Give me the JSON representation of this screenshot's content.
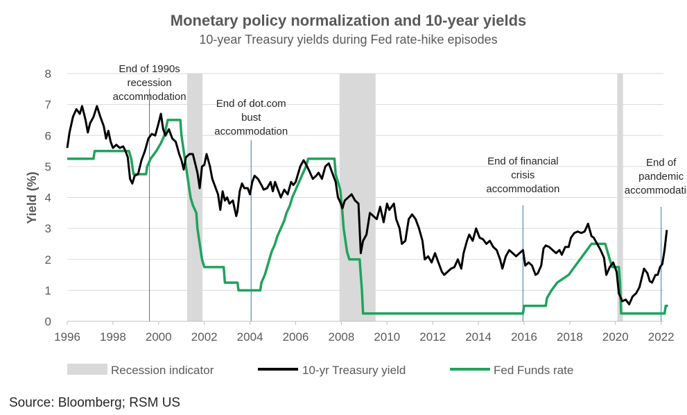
{
  "chart_data": {
    "type": "line",
    "title": "Monetary policy normalization and 10-year yields",
    "subtitle": "10-year Treasury yields during Fed rate-hike episodes",
    "ylabel": "Yield (%)",
    "xlabel": "",
    "xlim": [
      1996,
      2022.4
    ],
    "ylim": [
      0,
      8
    ],
    "grid": true,
    "legend_position": "bottom",
    "x_ticks": [
      "1996",
      "1998",
      "2000",
      "2002",
      "2004",
      "2006",
      "2008",
      "2010",
      "2012",
      "2014",
      "2016",
      "2018",
      "2020",
      "2022"
    ],
    "y_ticks": [
      "0",
      "1",
      "2",
      "3",
      "4",
      "5",
      "6",
      "7",
      "8"
    ],
    "recessions": [
      {
        "start": 2001.25,
        "end": 2001.92
      },
      {
        "start": 2007.92,
        "end": 2009.5
      },
      {
        "start": 2020.08,
        "end": 2020.33
      }
    ],
    "annotations": [
      {
        "x": 1999.6,
        "lines": [
          "End of 1990s",
          "recession",
          "accommodation"
        ]
      },
      {
        "x": 2004.05,
        "lines": [
          "End of dot.com",
          "bust",
          "accommodation"
        ]
      },
      {
        "x": 2015.95,
        "lines": [
          "End of financial",
          "crisis",
          "accommodation"
        ]
      },
      {
        "x": 2022.0,
        "lines": [
          "End of",
          "pandemic",
          "accommodation"
        ]
      }
    ],
    "series": [
      {
        "name": "10-yr Treasury yield",
        "color": "#000000",
        "points": [
          [
            1996.0,
            5.6
          ],
          [
            1996.1,
            6.1
          ],
          [
            1996.25,
            6.6
          ],
          [
            1996.4,
            6.85
          ],
          [
            1996.55,
            6.7
          ],
          [
            1996.65,
            6.95
          ],
          [
            1996.8,
            6.5
          ],
          [
            1996.9,
            6.1
          ],
          [
            1997.0,
            6.4
          ],
          [
            1997.15,
            6.6
          ],
          [
            1997.3,
            6.95
          ],
          [
            1997.45,
            6.6
          ],
          [
            1997.6,
            6.3
          ],
          [
            1997.7,
            5.9
          ],
          [
            1997.8,
            6.15
          ],
          [
            1997.9,
            5.8
          ],
          [
            1998.0,
            5.6
          ],
          [
            1998.15,
            5.7
          ],
          [
            1998.3,
            5.6
          ],
          [
            1998.45,
            5.65
          ],
          [
            1998.55,
            5.5
          ],
          [
            1998.65,
            5.3
          ],
          [
            1998.75,
            4.6
          ],
          [
            1998.85,
            4.45
          ],
          [
            1998.95,
            4.7
          ],
          [
            1999.1,
            4.75
          ],
          [
            1999.25,
            5.2
          ],
          [
            1999.4,
            5.5
          ],
          [
            1999.55,
            5.9
          ],
          [
            1999.7,
            6.05
          ],
          [
            1999.85,
            6.0
          ],
          [
            2000.0,
            6.4
          ],
          [
            2000.1,
            6.7
          ],
          [
            2000.2,
            6.2
          ],
          [
            2000.3,
            6.0
          ],
          [
            2000.45,
            6.2
          ],
          [
            2000.6,
            5.9
          ],
          [
            2000.75,
            5.8
          ],
          [
            2000.9,
            5.4
          ],
          [
            2001.0,
            5.2
          ],
          [
            2001.1,
            4.9
          ],
          [
            2001.2,
            5.3
          ],
          [
            2001.35,
            5.4
          ],
          [
            2001.5,
            5.4
          ],
          [
            2001.6,
            5.1
          ],
          [
            2001.7,
            4.8
          ],
          [
            2001.8,
            4.3
          ],
          [
            2001.9,
            5.0
          ],
          [
            2002.0,
            5.05
          ],
          [
            2002.1,
            5.4
          ],
          [
            2002.25,
            5.0
          ],
          [
            2002.35,
            4.6
          ],
          [
            2002.5,
            4.3
          ],
          [
            2002.6,
            4.1
          ],
          [
            2002.7,
            3.6
          ],
          [
            2002.8,
            4.2
          ],
          [
            2002.9,
            3.9
          ],
          [
            2003.0,
            4.0
          ],
          [
            2003.1,
            3.8
          ],
          [
            2003.25,
            3.9
          ],
          [
            2003.4,
            3.4
          ],
          [
            2003.45,
            3.55
          ],
          [
            2003.55,
            4.2
          ],
          [
            2003.65,
            4.45
          ],
          [
            2003.75,
            4.3
          ],
          [
            2003.9,
            4.3
          ],
          [
            2004.0,
            4.1
          ],
          [
            2004.1,
            4.5
          ],
          [
            2004.2,
            4.7
          ],
          [
            2004.35,
            4.6
          ],
          [
            2004.5,
            4.4
          ],
          [
            2004.6,
            4.25
          ],
          [
            2004.75,
            4.3
          ],
          [
            2004.9,
            4.5
          ],
          [
            2005.0,
            4.2
          ],
          [
            2005.1,
            4.5
          ],
          [
            2005.25,
            4.2
          ],
          [
            2005.35,
            4.0
          ],
          [
            2005.5,
            4.25
          ],
          [
            2005.65,
            4.1
          ],
          [
            2005.8,
            4.5
          ],
          [
            2005.9,
            4.4
          ],
          [
            2006.0,
            4.5
          ],
          [
            2006.2,
            5.0
          ],
          [
            2006.35,
            5.2
          ],
          [
            2006.5,
            5.0
          ],
          [
            2006.6,
            4.85
          ],
          [
            2006.75,
            4.6
          ],
          [
            2006.9,
            4.7
          ],
          [
            2007.0,
            4.8
          ],
          [
            2007.15,
            4.6
          ],
          [
            2007.3,
            5.0
          ],
          [
            2007.45,
            5.1
          ],
          [
            2007.6,
            4.8
          ],
          [
            2007.75,
            4.5
          ],
          [
            2007.85,
            4.0
          ],
          [
            2007.95,
            3.85
          ],
          [
            2008.05,
            3.65
          ],
          [
            2008.15,
            3.9
          ],
          [
            2008.3,
            4.0
          ],
          [
            2008.45,
            4.1
          ],
          [
            2008.6,
            3.9
          ],
          [
            2008.75,
            3.8
          ],
          [
            2008.85,
            2.2
          ],
          [
            2008.95,
            2.6
          ],
          [
            2009.1,
            2.8
          ],
          [
            2009.25,
            3.5
          ],
          [
            2009.4,
            3.4
          ],
          [
            2009.55,
            3.3
          ],
          [
            2009.7,
            3.7
          ],
          [
            2009.85,
            3.2
          ],
          [
            2010.0,
            3.8
          ],
          [
            2010.1,
            3.6
          ],
          [
            2010.3,
            3.8
          ],
          [
            2010.4,
            3.3
          ],
          [
            2010.55,
            3.0
          ],
          [
            2010.65,
            2.5
          ],
          [
            2010.8,
            2.6
          ],
          [
            2010.95,
            3.3
          ],
          [
            2011.1,
            3.45
          ],
          [
            2011.25,
            3.3
          ],
          [
            2011.4,
            3.0
          ],
          [
            2011.55,
            2.6
          ],
          [
            2011.65,
            2.0
          ],
          [
            2011.8,
            2.1
          ],
          [
            2011.95,
            1.9
          ],
          [
            2012.1,
            2.2
          ],
          [
            2012.25,
            1.9
          ],
          [
            2012.4,
            1.6
          ],
          [
            2012.5,
            1.5
          ],
          [
            2012.65,
            1.6
          ],
          [
            2012.8,
            1.7
          ],
          [
            2012.95,
            1.75
          ],
          [
            2013.1,
            2.0
          ],
          [
            2013.25,
            1.7
          ],
          [
            2013.35,
            2.2
          ],
          [
            2013.5,
            2.6
          ],
          [
            2013.6,
            2.8
          ],
          [
            2013.75,
            2.6
          ],
          [
            2013.9,
            3.0
          ],
          [
            2014.05,
            2.7
          ],
          [
            2014.2,
            2.65
          ],
          [
            2014.35,
            2.5
          ],
          [
            2014.5,
            2.6
          ],
          [
            2014.65,
            2.4
          ],
          [
            2014.8,
            2.3
          ],
          [
            2014.95,
            2.0
          ],
          [
            2015.05,
            1.7
          ],
          [
            2015.2,
            2.1
          ],
          [
            2015.35,
            2.3
          ],
          [
            2015.5,
            2.2
          ],
          [
            2015.65,
            2.1
          ],
          [
            2015.8,
            2.2
          ],
          [
            2015.95,
            2.3
          ],
          [
            2016.05,
            1.8
          ],
          [
            2016.2,
            1.9
          ],
          [
            2016.35,
            1.8
          ],
          [
            2016.5,
            1.5
          ],
          [
            2016.6,
            1.55
          ],
          [
            2016.75,
            1.8
          ],
          [
            2016.85,
            2.35
          ],
          [
            2016.95,
            2.45
          ],
          [
            2017.1,
            2.4
          ],
          [
            2017.25,
            2.3
          ],
          [
            2017.4,
            2.2
          ],
          [
            2017.55,
            2.3
          ],
          [
            2017.65,
            2.15
          ],
          [
            2017.8,
            2.4
          ],
          [
            2017.95,
            2.4
          ],
          [
            2018.05,
            2.7
          ],
          [
            2018.2,
            2.85
          ],
          [
            2018.35,
            2.9
          ],
          [
            2018.5,
            2.85
          ],
          [
            2018.65,
            2.9
          ],
          [
            2018.8,
            3.15
          ],
          [
            2018.95,
            2.75
          ],
          [
            2019.05,
            2.7
          ],
          [
            2019.2,
            2.5
          ],
          [
            2019.35,
            2.3
          ],
          [
            2019.5,
            2.05
          ],
          [
            2019.6,
            1.5
          ],
          [
            2019.75,
            1.75
          ],
          [
            2019.9,
            1.9
          ],
          [
            2020.05,
            1.6
          ],
          [
            2020.15,
            0.9
          ],
          [
            2020.3,
            0.65
          ],
          [
            2020.45,
            0.7
          ],
          [
            2020.6,
            0.55
          ],
          [
            2020.75,
            0.8
          ],
          [
            2020.9,
            0.9
          ],
          [
            2021.05,
            1.1
          ],
          [
            2021.15,
            1.4
          ],
          [
            2021.25,
            1.7
          ],
          [
            2021.4,
            1.55
          ],
          [
            2021.5,
            1.3
          ],
          [
            2021.6,
            1.25
          ],
          [
            2021.75,
            1.5
          ],
          [
            2021.85,
            1.5
          ],
          [
            2021.95,
            1.75
          ],
          [
            2022.05,
            1.85
          ],
          [
            2022.15,
            2.3
          ],
          [
            2022.25,
            2.95
          ]
        ]
      },
      {
        "name": "Fed Funds rate",
        "color": "#1fa35c",
        "points": [
          [
            1996.0,
            5.25
          ],
          [
            1997.15,
            5.25
          ],
          [
            1997.2,
            5.5
          ],
          [
            1998.7,
            5.5
          ],
          [
            1998.8,
            5.25
          ],
          [
            1998.85,
            5.0
          ],
          [
            1998.9,
            4.75
          ],
          [
            1999.45,
            4.75
          ],
          [
            1999.5,
            5.0
          ],
          [
            1999.65,
            5.25
          ],
          [
            1999.9,
            5.5
          ],
          [
            2000.1,
            5.75
          ],
          [
            2000.25,
            6.0
          ],
          [
            2000.4,
            6.5
          ],
          [
            2000.95,
            6.5
          ],
          [
            2001.0,
            6.0
          ],
          [
            2001.1,
            5.5
          ],
          [
            2001.2,
            5.0
          ],
          [
            2001.3,
            4.5
          ],
          [
            2001.4,
            4.0
          ],
          [
            2001.5,
            3.75
          ],
          [
            2001.65,
            3.5
          ],
          [
            2001.7,
            3.0
          ],
          [
            2001.8,
            2.5
          ],
          [
            2001.9,
            2.0
          ],
          [
            2002.0,
            1.75
          ],
          [
            2002.85,
            1.75
          ],
          [
            2002.9,
            1.25
          ],
          [
            2003.45,
            1.25
          ],
          [
            2003.5,
            1.0
          ],
          [
            2004.45,
            1.0
          ],
          [
            2004.5,
            1.25
          ],
          [
            2004.65,
            1.5
          ],
          [
            2004.75,
            1.75
          ],
          [
            2004.85,
            2.0
          ],
          [
            2004.95,
            2.25
          ],
          [
            2005.1,
            2.5
          ],
          [
            2005.2,
            2.75
          ],
          [
            2005.35,
            3.0
          ],
          [
            2005.5,
            3.25
          ],
          [
            2005.6,
            3.5
          ],
          [
            2005.75,
            3.75
          ],
          [
            2005.85,
            4.0
          ],
          [
            2006.0,
            4.25
          ],
          [
            2006.15,
            4.5
          ],
          [
            2006.3,
            4.75
          ],
          [
            2006.45,
            5.0
          ],
          [
            2006.55,
            5.25
          ],
          [
            2007.7,
            5.25
          ],
          [
            2007.75,
            4.75
          ],
          [
            2007.85,
            4.5
          ],
          [
            2007.95,
            4.25
          ],
          [
            2008.05,
            3.5
          ],
          [
            2008.1,
            3.0
          ],
          [
            2008.25,
            2.25
          ],
          [
            2008.35,
            2.0
          ],
          [
            2008.8,
            2.0
          ],
          [
            2008.85,
            1.5
          ],
          [
            2008.9,
            1.0
          ],
          [
            2008.95,
            0.25
          ],
          [
            2015.95,
            0.25
          ],
          [
            2016.0,
            0.5
          ],
          [
            2016.95,
            0.5
          ],
          [
            2017.0,
            0.75
          ],
          [
            2017.2,
            1.0
          ],
          [
            2017.45,
            1.25
          ],
          [
            2017.95,
            1.5
          ],
          [
            2018.2,
            1.75
          ],
          [
            2018.45,
            2.0
          ],
          [
            2018.7,
            2.25
          ],
          [
            2018.95,
            2.5
          ],
          [
            2019.55,
            2.5
          ],
          [
            2019.65,
            2.25
          ],
          [
            2019.75,
            2.0
          ],
          [
            2019.85,
            1.75
          ],
          [
            2020.15,
            1.75
          ],
          [
            2020.2,
            1.25
          ],
          [
            2020.25,
            0.25
          ],
          [
            2022.15,
            0.25
          ],
          [
            2022.2,
            0.5
          ],
          [
            2022.3,
            0.5
          ]
        ]
      }
    ]
  },
  "legend": {
    "recession": "Recession indicator",
    "treasury": "10-yr Treasury yield",
    "fedfunds": "Fed Funds rate"
  },
  "colors": {
    "recession": "#d9d9d9",
    "treasury": "#000000",
    "fedfunds": "#1fa35c",
    "annotation_line": "#2e75b6",
    "grid": "#d9d9d9"
  },
  "source": "Source: Bloomberg; RSM US"
}
